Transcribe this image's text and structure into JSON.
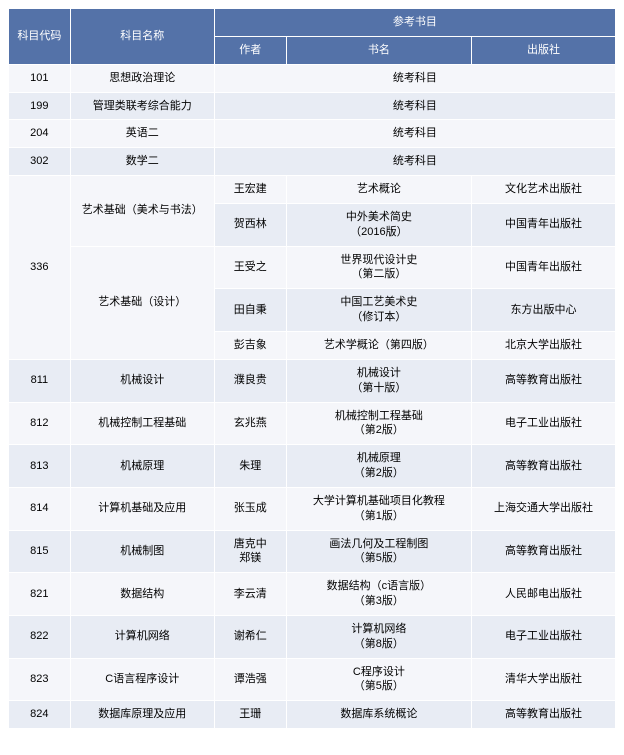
{
  "header": {
    "code": "科目代码",
    "name": "科目名称",
    "refbooks": "参考书目",
    "author": "作者",
    "book": "书名",
    "publisher": "出版社"
  },
  "colors": {
    "header_bg": "#5472a8",
    "header_fg": "#ffffff",
    "stripe_a": "#e8ecf4",
    "stripe_b": "#f5f6fa",
    "border": "#ffffff"
  },
  "uniform_text": "统考科目",
  "rows": {
    "r101": {
      "code": "101",
      "name": "思想政治理论"
    },
    "r199": {
      "code": "199",
      "name": "管理类联考综合能力"
    },
    "r204": {
      "code": "204",
      "name": "英语二"
    },
    "r302": {
      "code": "302",
      "name": "数学二"
    },
    "r336": {
      "code": "336",
      "name_art": "艺术基础（美术与书法）",
      "name_design": "艺术基础（设计）",
      "b1": {
        "author": "王宏建",
        "book": "艺术概论",
        "publisher": "文化艺术出版社"
      },
      "b2": {
        "author": "贺西林",
        "book": "中外美术简史\n（2016版）",
        "publisher": "中国青年出版社"
      },
      "b3": {
        "author": "王受之",
        "book": "世界现代设计史\n（第二版）",
        "publisher": "中国青年出版社"
      },
      "b4": {
        "author": "田自秉",
        "book": "中国工艺美术史\n（修订本）",
        "publisher": "东方出版中心"
      },
      "b5": {
        "author": "彭吉象",
        "book": "艺术学概论（第四版）",
        "publisher": "北京大学出版社"
      }
    },
    "r811": {
      "code": "811",
      "name": "机械设计",
      "author": "濮良贵",
      "book": "机械设计\n（第十版）",
      "publisher": "高等教育出版社"
    },
    "r812": {
      "code": "812",
      "name": "机械控制工程基础",
      "author": "玄兆燕",
      "book": "机械控制工程基础\n（第2版）",
      "publisher": "电子工业出版社"
    },
    "r813": {
      "code": "813",
      "name": "机械原理",
      "author": "朱理",
      "book": "机械原理\n（第2版）",
      "publisher": "高等教育出版社"
    },
    "r814": {
      "code": "814",
      "name": "计算机基础及应用",
      "author": "张玉成",
      "book": "大学计算机基础项目化教程\n（第1版）",
      "publisher": "上海交通大学出版社"
    },
    "r815": {
      "code": "815",
      "name": "机械制图",
      "author": "唐克中\n郑镁",
      "book": "画法几何及工程制图\n（第5版）",
      "publisher": "高等教育出版社"
    },
    "r821": {
      "code": "821",
      "name": "数据结构",
      "author": "李云清",
      "book": "数据结构（c语言版）\n（第3版）",
      "publisher": "人民邮电出版社"
    },
    "r822": {
      "code": "822",
      "name": "计算机网络",
      "author": "谢希仁",
      "book": "计算机网络\n（第8版）",
      "publisher": "电子工业出版社"
    },
    "r823": {
      "code": "823",
      "name": "C语言程序设计",
      "author": "谭浩强",
      "book": "C程序设计\n（第5版）",
      "publisher": "清华大学出版社"
    },
    "r824": {
      "code": "824",
      "name": "数据库原理及应用",
      "author": "王珊",
      "book": "数据库系统概论",
      "publisher": "高等教育出版社"
    }
  }
}
